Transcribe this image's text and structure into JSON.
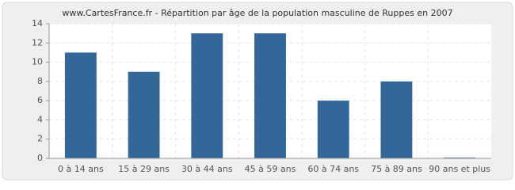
{
  "chart_data": {
    "type": "bar",
    "title": "www.CartesFrance.fr - Répartition par âge de la population masculine de Ruppes en 2007",
    "categories": [
      "0 à 14 ans",
      "15 à 29 ans",
      "30 à 44 ans",
      "45 à 59 ans",
      "60 à 74 ans",
      "75 à 89 ans",
      "90 ans et plus"
    ],
    "values": [
      11,
      9,
      13,
      13,
      6,
      8,
      0
    ],
    "color": "#336699",
    "ylim": [
      0,
      14
    ],
    "yticks": [
      0,
      2,
      4,
      6,
      8,
      10,
      12,
      14
    ],
    "grid": true
  }
}
